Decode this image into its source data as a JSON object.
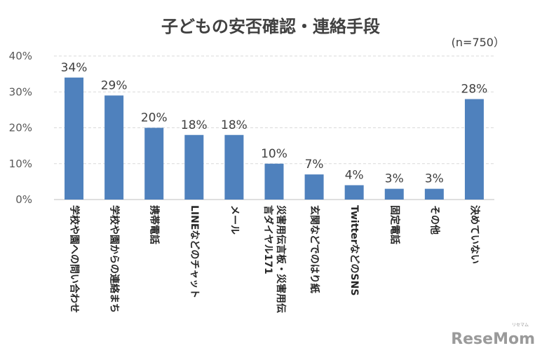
{
  "chart_data": {
    "type": "bar",
    "title": "子どもの安否確認・連絡手段",
    "note": "(n=750）",
    "categories": [
      "学校や園への問い合わせ",
      "学校や園からの連絡まち",
      "携帯電話",
      "LINEなどのチャット",
      "メール",
      "災害用伝言板・災害用伝言ダイヤル171",
      "玄関などでのはり紙",
      "TwitterなどのSNS",
      "固定電話",
      "その他",
      "決めていない"
    ],
    "category_lines": [
      [
        "学校や園への問い合わせ"
      ],
      [
        "学校や園からの連絡まち"
      ],
      [
        "携帯電話"
      ],
      [
        "LINEなどのチャット"
      ],
      [
        "メール"
      ],
      [
        "災害用伝言板・災害用伝",
        "言ダイヤル171"
      ],
      [
        "玄関などでのはり紙"
      ],
      [
        "TwitterなどのSNS"
      ],
      [
        "固定電話"
      ],
      [
        "その他"
      ],
      [
        "決めていない"
      ]
    ],
    "values": [
      34,
      29,
      20,
      18,
      18,
      10,
      7,
      4,
      3,
      3,
      28
    ],
    "data_labels": [
      "34%",
      "29%",
      "20%",
      "18%",
      "18%",
      "10%",
      "7%",
      "4%",
      "3%",
      "3%",
      "28%"
    ],
    "yticks": [
      0,
      10,
      20,
      30,
      40
    ],
    "ytick_labels": [
      "0%",
      "10%",
      "20%",
      "30%",
      "40%"
    ],
    "ylim": [
      0,
      40
    ],
    "grid": true,
    "bar_color": "#4f81bd",
    "grid_color": "#d9d9d9"
  },
  "watermark": {
    "text": "ReseMom",
    "ruby": "リセマム"
  }
}
